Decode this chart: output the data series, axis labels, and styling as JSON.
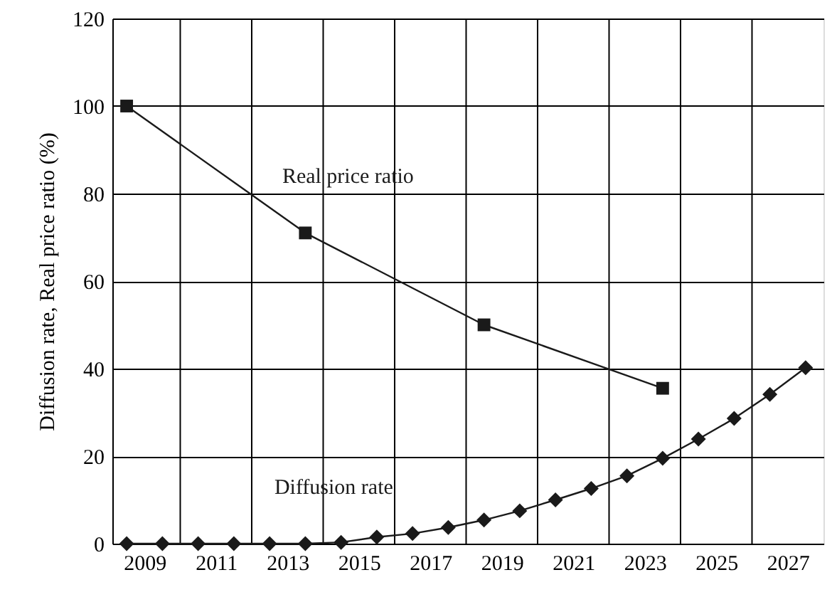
{
  "chart_data": {
    "type": "line",
    "ylabel": "Diffusion rate, Real price ratio (%)",
    "xlim": [
      2008.1,
      2028
    ],
    "ylim": [
      0,
      120
    ],
    "yticks": [
      0,
      20,
      40,
      60,
      80,
      100,
      120
    ],
    "xticks": [
      2009,
      {
        "value": 2010,
        "label": null
      },
      2011,
      {
        "value": 2012,
        "label": null
      },
      2013,
      {
        "value": 2014,
        "label": null
      },
      2015,
      {
        "value": 2016,
        "label": null
      },
      2017,
      {
        "value": 2018,
        "label": null
      },
      2019,
      {
        "value": 2020,
        "label": null
      },
      2021,
      {
        "value": 2022,
        "label": null
      },
      2023,
      {
        "value": 2024,
        "label": null
      },
      2025,
      {
        "value": 2026,
        "label": null
      },
      2027
    ],
    "grid": true,
    "line_style": "solid",
    "series": [
      {
        "name": "Real price ratio",
        "color": "#1a1a1a",
        "marker": "square",
        "x": [
          2008.5,
          2013.5,
          2018.5,
          2023.5
        ],
        "values": [
          100,
          71,
          50,
          35.5
        ]
      },
      {
        "name": "Diffusion rate",
        "color": "#1a1a1a",
        "marker": "diamond",
        "x": [
          2008.5,
          2009.5,
          2010.5,
          2011.5,
          2012.5,
          2013.5,
          2014.5,
          2015.5,
          2016.5,
          2017.5,
          2018.5,
          2019.5,
          2020.5,
          2021.5,
          2022.5,
          2023.5,
          2024.5,
          2025.5,
          2026.5,
          2027.5
        ],
        "values": [
          0,
          0,
          0,
          0,
          0,
          0,
          0.3,
          1.5,
          2.3,
          3.7,
          5.4,
          7.5,
          10,
          12.6,
          15.5,
          19.5,
          23.9,
          28.6,
          34.1,
          40.2
        ]
      }
    ]
  }
}
